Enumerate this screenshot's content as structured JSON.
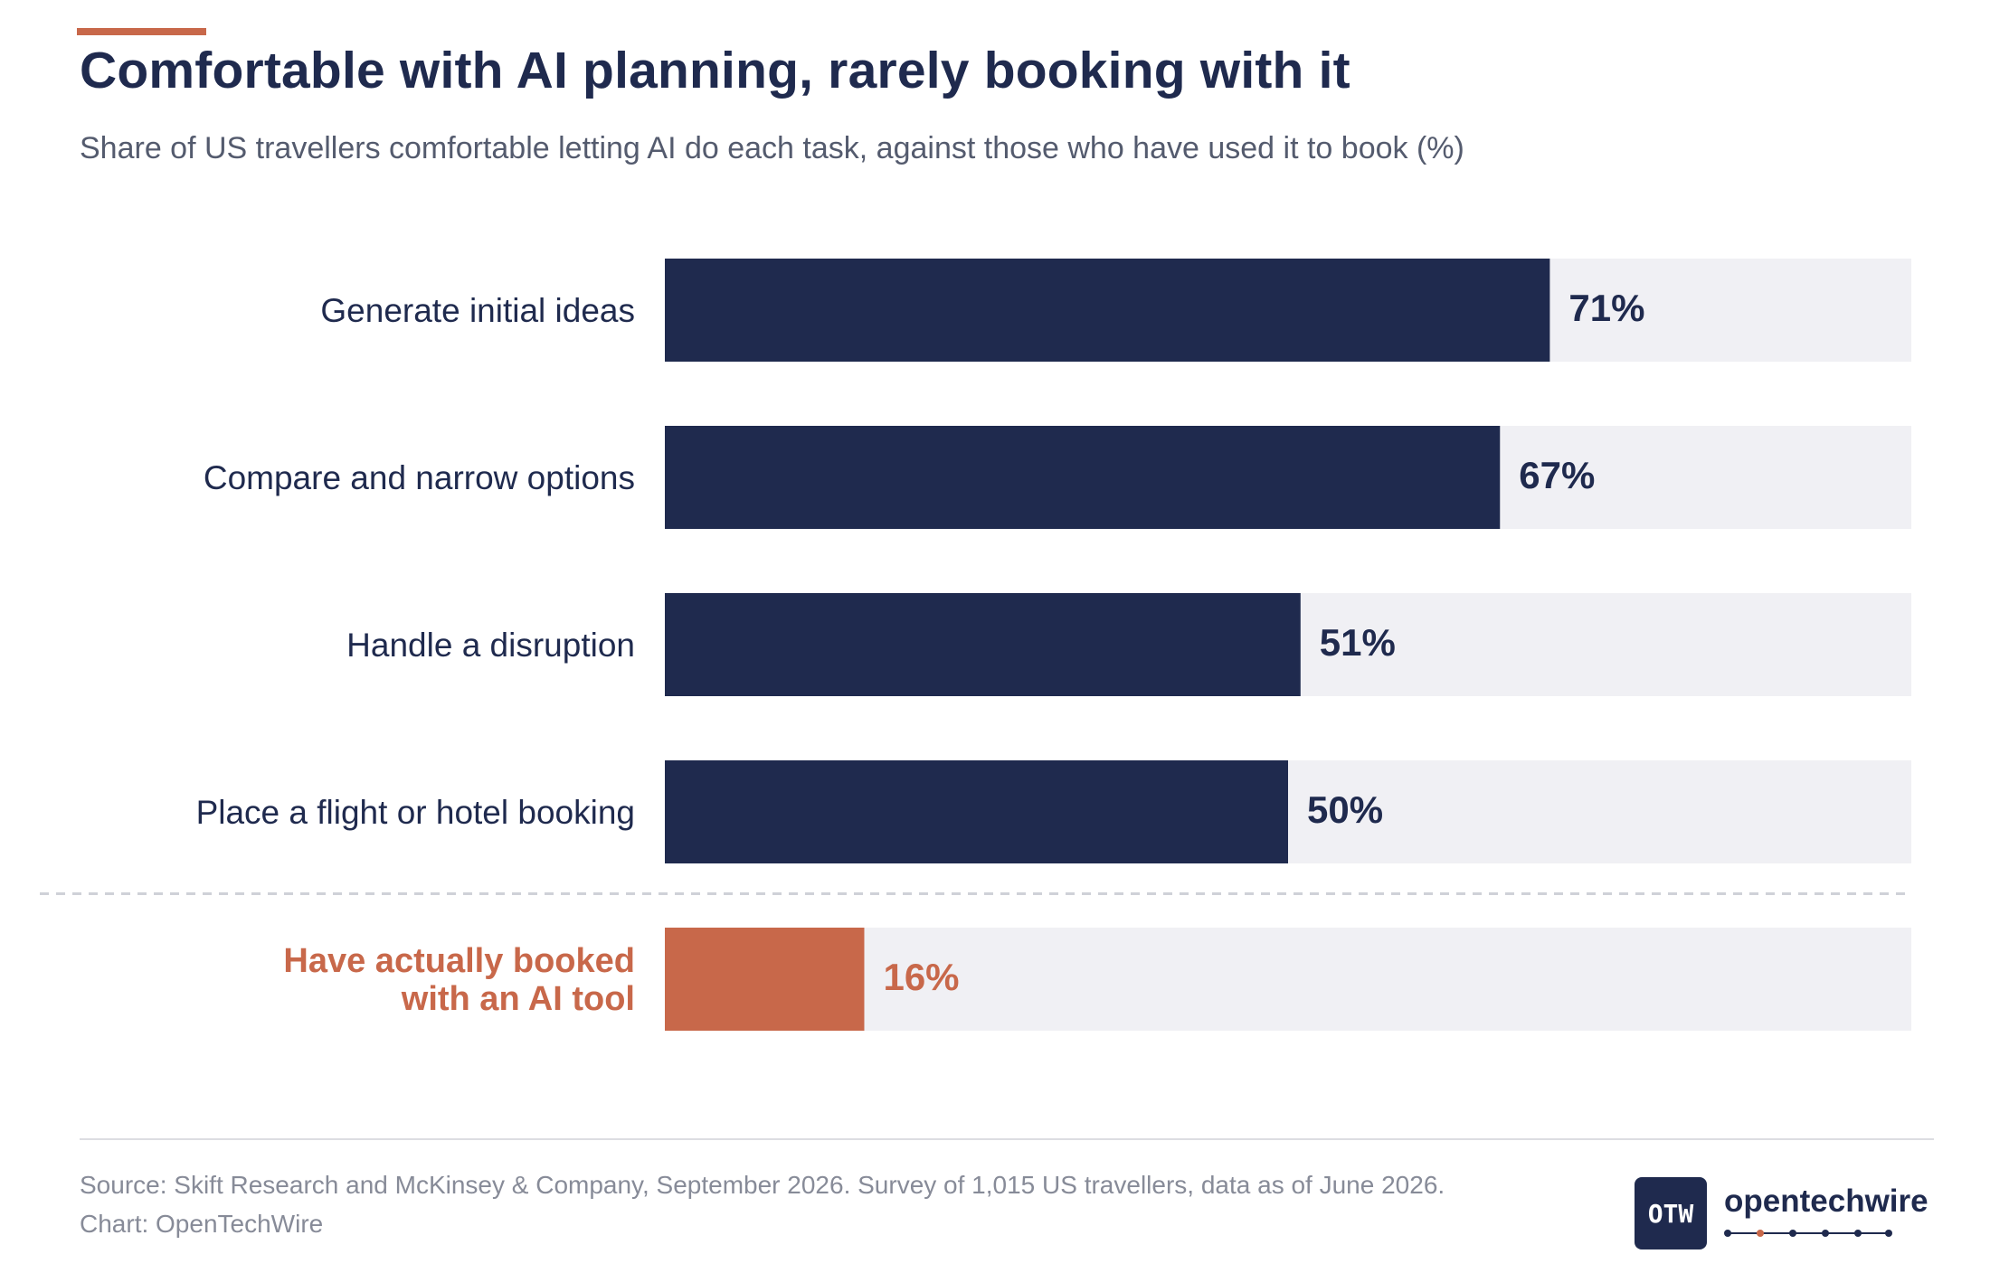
{
  "header": {
    "title": "Comfortable with AI planning, rarely booking with it",
    "subtitle": "Share of US travellers comfortable letting AI do each task, against those who have used it to book (%)"
  },
  "chart_data": {
    "type": "bar",
    "orientation": "horizontal",
    "categories": [
      "Generate initial ideas",
      "Compare and narrow options",
      "Handle a disruption",
      "Place a flight or hotel booking",
      "Have actually booked with an AI tool"
    ],
    "values": [
      71,
      67,
      51,
      50,
      16
    ],
    "data_labels": [
      "71%",
      "67%",
      "51%",
      "50%",
      "16%"
    ],
    "highlighted_category": "Have actually booked with an AI tool",
    "highlight_label_lines": [
      "Have actually booked",
      "with an AI tool"
    ],
    "xlim": [
      0,
      100
    ],
    "grid": false,
    "colors": {
      "bar": "#1f2a4e",
      "highlight": "#c8684a",
      "track": "#f0f0f4",
      "divider": "#cfd1d8"
    }
  },
  "footer": {
    "source": "Source: Skift Research and McKinsey & Company, September 2026. Survey of 1,015 US travellers, data as of June 2026.",
    "credit": "Chart: OpenTechWire",
    "logo_mark": "OTW",
    "logo_word": "opentechwire"
  },
  "colors": {
    "accent": "#c8684a",
    "navy": "#1f2a4e"
  }
}
